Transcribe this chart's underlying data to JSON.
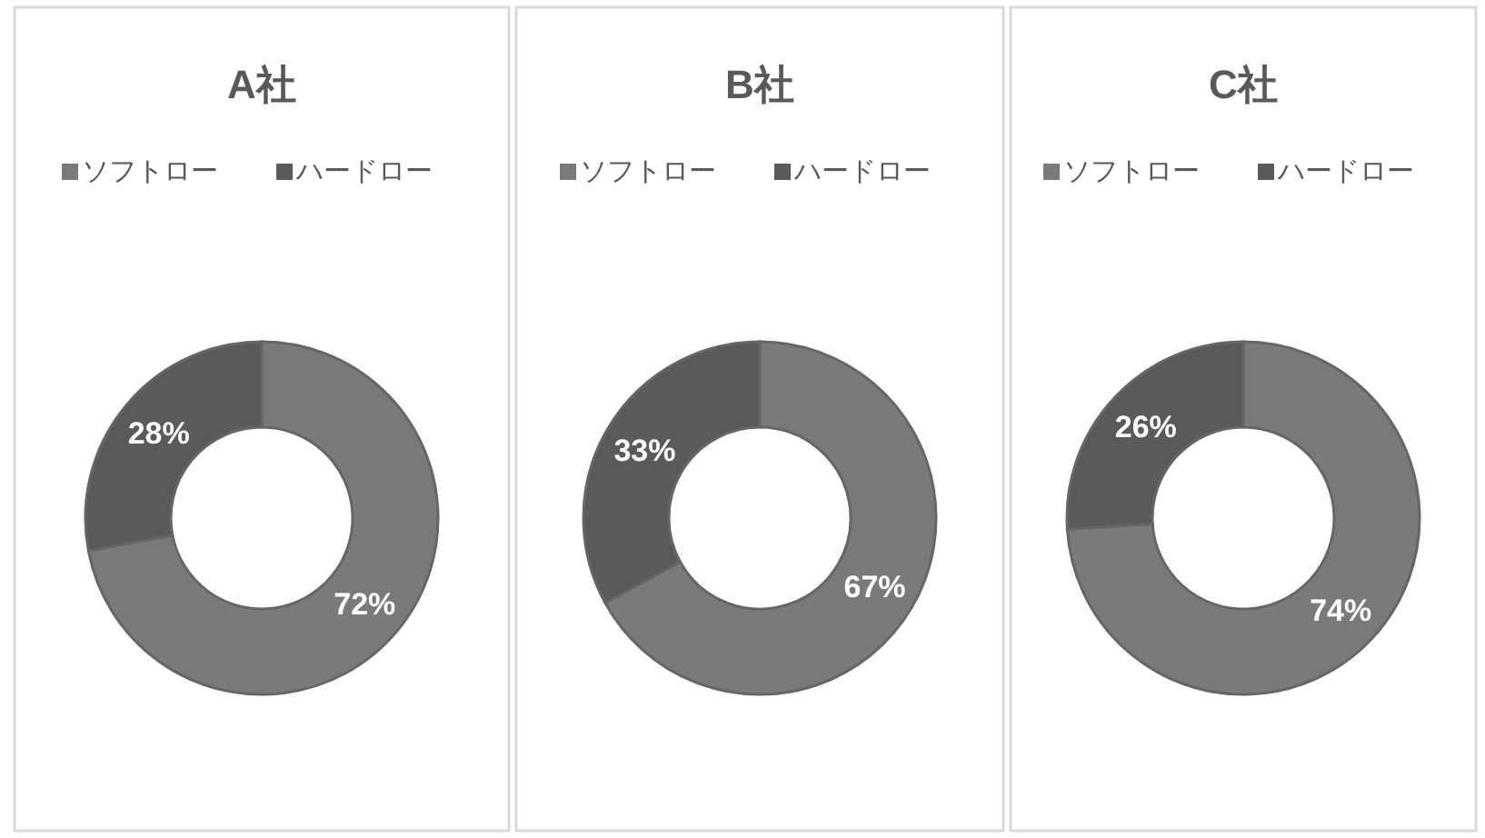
{
  "chart_data": [
    {
      "type": "donut",
      "title": "A社",
      "categories": [
        "ソフトロー",
        "ハードロー"
      ],
      "values": [
        72,
        28
      ],
      "colors": [
        "#7a7a7a",
        "#5a5a5a"
      ],
      "value_labels": [
        "72%",
        "28%"
      ],
      "legend": "top"
    },
    {
      "type": "donut",
      "title": "B社",
      "categories": [
        "ソフトロー",
        "ハードロー"
      ],
      "values": [
        67,
        33
      ],
      "colors": [
        "#7a7a7a",
        "#5a5a5a"
      ],
      "value_labels": [
        "67%",
        "33%"
      ],
      "legend": "top"
    },
    {
      "type": "donut",
      "title": "C社",
      "categories": [
        "ソフトロー",
        "ハードロー"
      ],
      "values": [
        74,
        26
      ],
      "colors": [
        "#7a7a7a",
        "#5a5a5a"
      ],
      "value_labels": [
        "74%",
        "26%"
      ],
      "legend": "top"
    }
  ]
}
